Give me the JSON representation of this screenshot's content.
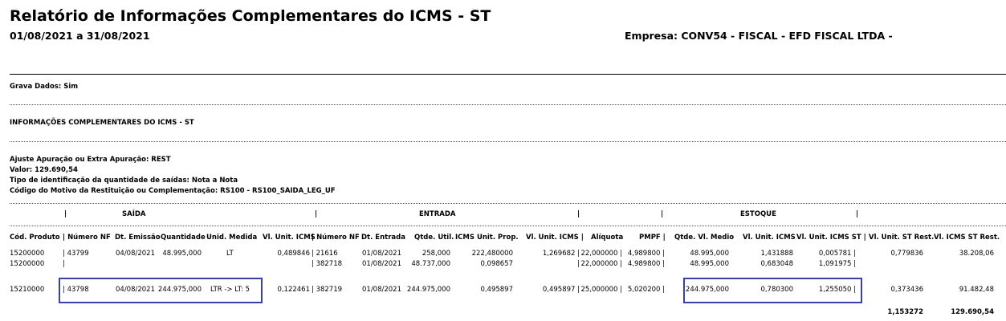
{
  "report": {
    "title": "Relatório de Informações Complementares do ICMS - ST",
    "period": "01/08/2021 a 31/08/2021",
    "empresa": "Empresa: CONV54 - FISCAL - EFD FISCAL LTDA -"
  },
  "grava_dados": "Grava Dados: Sim",
  "section_title": "INFORMAÇÕES COMPLEMENTARES DO ICMS - ST",
  "info_lines": [
    "Ajuste Apuração ou Extra Apuração: REST",
    "Valor: 129.690,54",
    "Tipo de identificação da quantidade de saídas: Nota a Nota",
    "Código do Motivo da Restituição ou Complementação: RS100 - RS100_SAIDA_LEG_UF"
  ],
  "groups": {
    "saida": "SAÍDA",
    "entrada": "ENTRADA",
    "estoque": "ESTOQUE"
  },
  "columns": [
    "Cód. Produto",
    "| Número NF",
    "Dt. Emissão",
    "Quantidade",
    "Unid. Medida",
    "Vl. Unit. ICMS",
    "| Número NF",
    "Dt. Entrada",
    "Qtde. Util.",
    "ICMS Unit. Prop.",
    "Vl. Unit. ICMS |",
    "Alíquota",
    "PMPF |",
    "Qtde. Vl. Medio",
    "Vl. Unit. ICMS",
    "Vl. Unit. ICMS ST |",
    "Vl. Unit. ST Rest.",
    "Vl. ICMS ST Rest."
  ],
  "rows": [
    [
      "15200000",
      "| 43799",
      "04/08/2021",
      "48.995,000",
      "LT",
      "0,489846",
      "| 21616",
      "01/08/2021",
      "258,000",
      "222,480000",
      "1,269682 |",
      "22,000000 |",
      "4,989800 |",
      "48.995,000",
      "1,431888",
      "0,005781 |",
      "0,779836",
      "38.208,06"
    ],
    [
      "15200000",
      "|",
      "",
      "",
      "",
      "",
      "| 382718",
      "01/08/2021",
      "48.737,000",
      "0,098657",
      "|",
      "22,000000 |",
      "4,989800 |",
      "48.995,000",
      "0,683048",
      "1,091975 |",
      "",
      ""
    ],
    [
      "15210000",
      "| 43798",
      "04/08/2021",
      "244.975,000",
      "LTR -> LT: 5",
      "0,122461",
      "| 382719",
      "01/08/2021",
      "244.975,000",
      "0,495897",
      "0,495897 |",
      "25,000000 |",
      "5,020200 |",
      "244.975,000",
      "0,780300",
      "1,255050 |",
      "0,373436",
      "91.482,48"
    ]
  ],
  "totals": [
    "1,153272",
    "129.690,54"
  ],
  "highlight_color": "#3b3fa8"
}
